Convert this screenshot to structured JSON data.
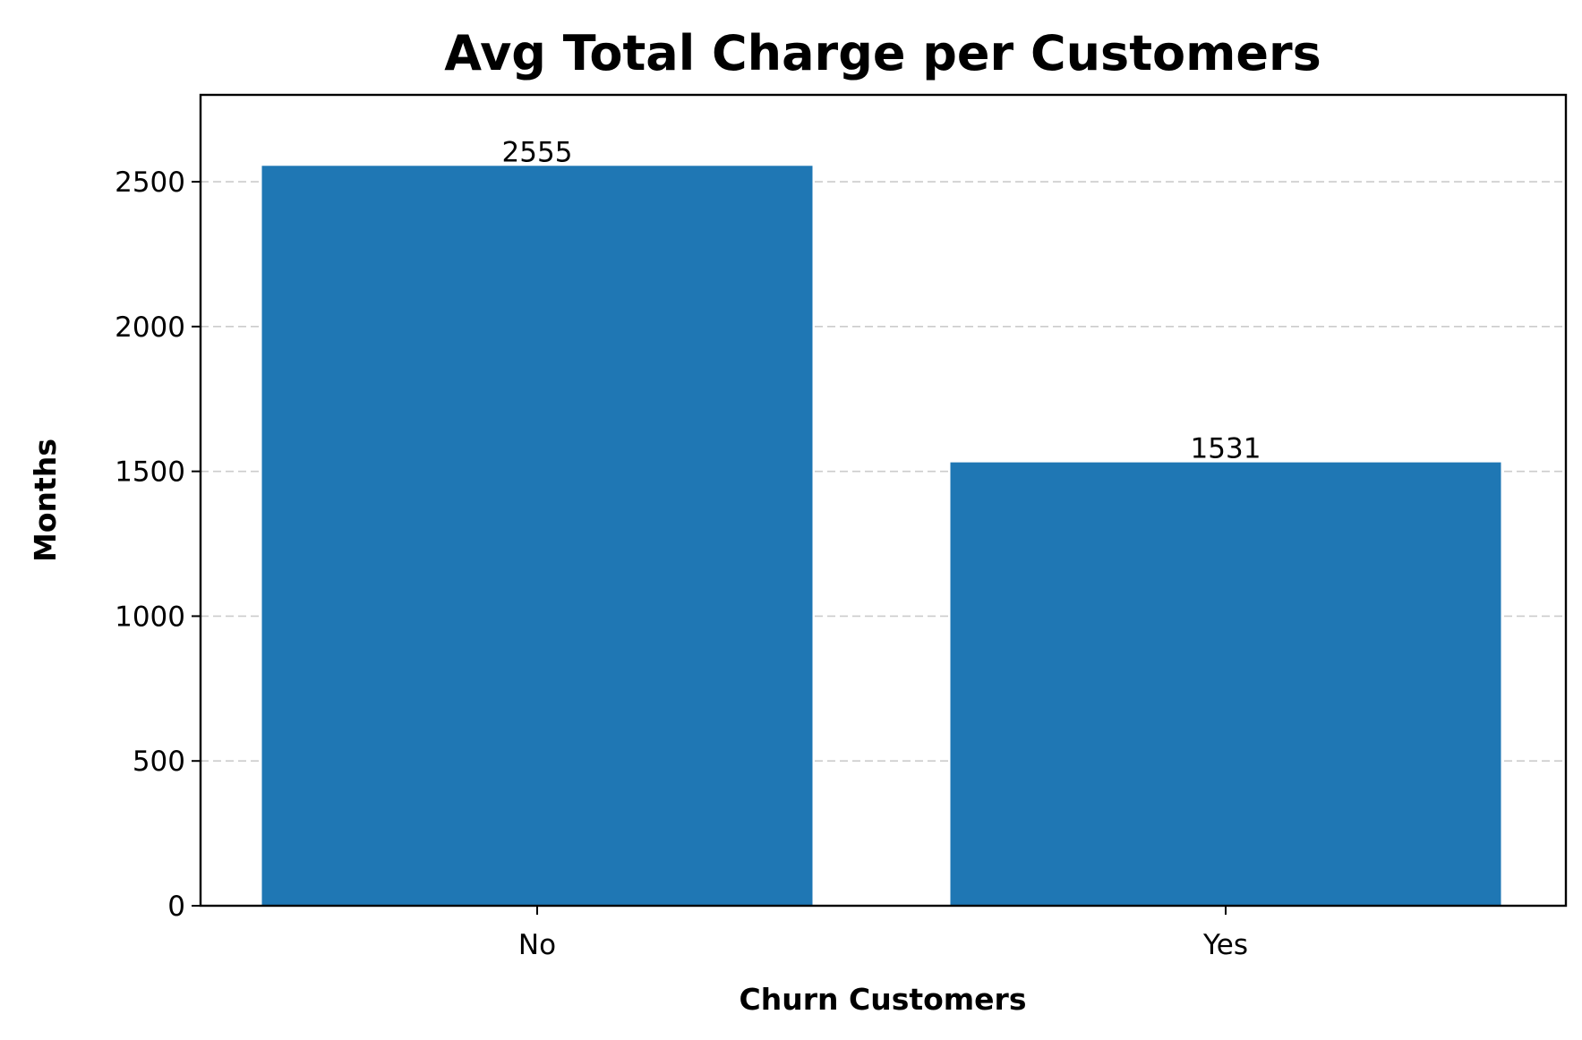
{
  "chart_data": {
    "type": "bar",
    "title": "Avg Total Charge per Customers",
    "xlabel": "Churn Customers",
    "ylabel": "Months",
    "categories": [
      "No",
      "Yes"
    ],
    "values": [
      2555,
      1531
    ],
    "data_labels": [
      "2555",
      "1531"
    ],
    "ylim": [
      0,
      2800
    ],
    "yticks": [
      0,
      500,
      1000,
      1500,
      2000,
      2500
    ],
    "ytick_labels": [
      "0",
      "500",
      "1000",
      "1500",
      "2000",
      "2500"
    ],
    "grid": "y-dashed",
    "bar_color": "#1f77b4",
    "legend": "none"
  }
}
